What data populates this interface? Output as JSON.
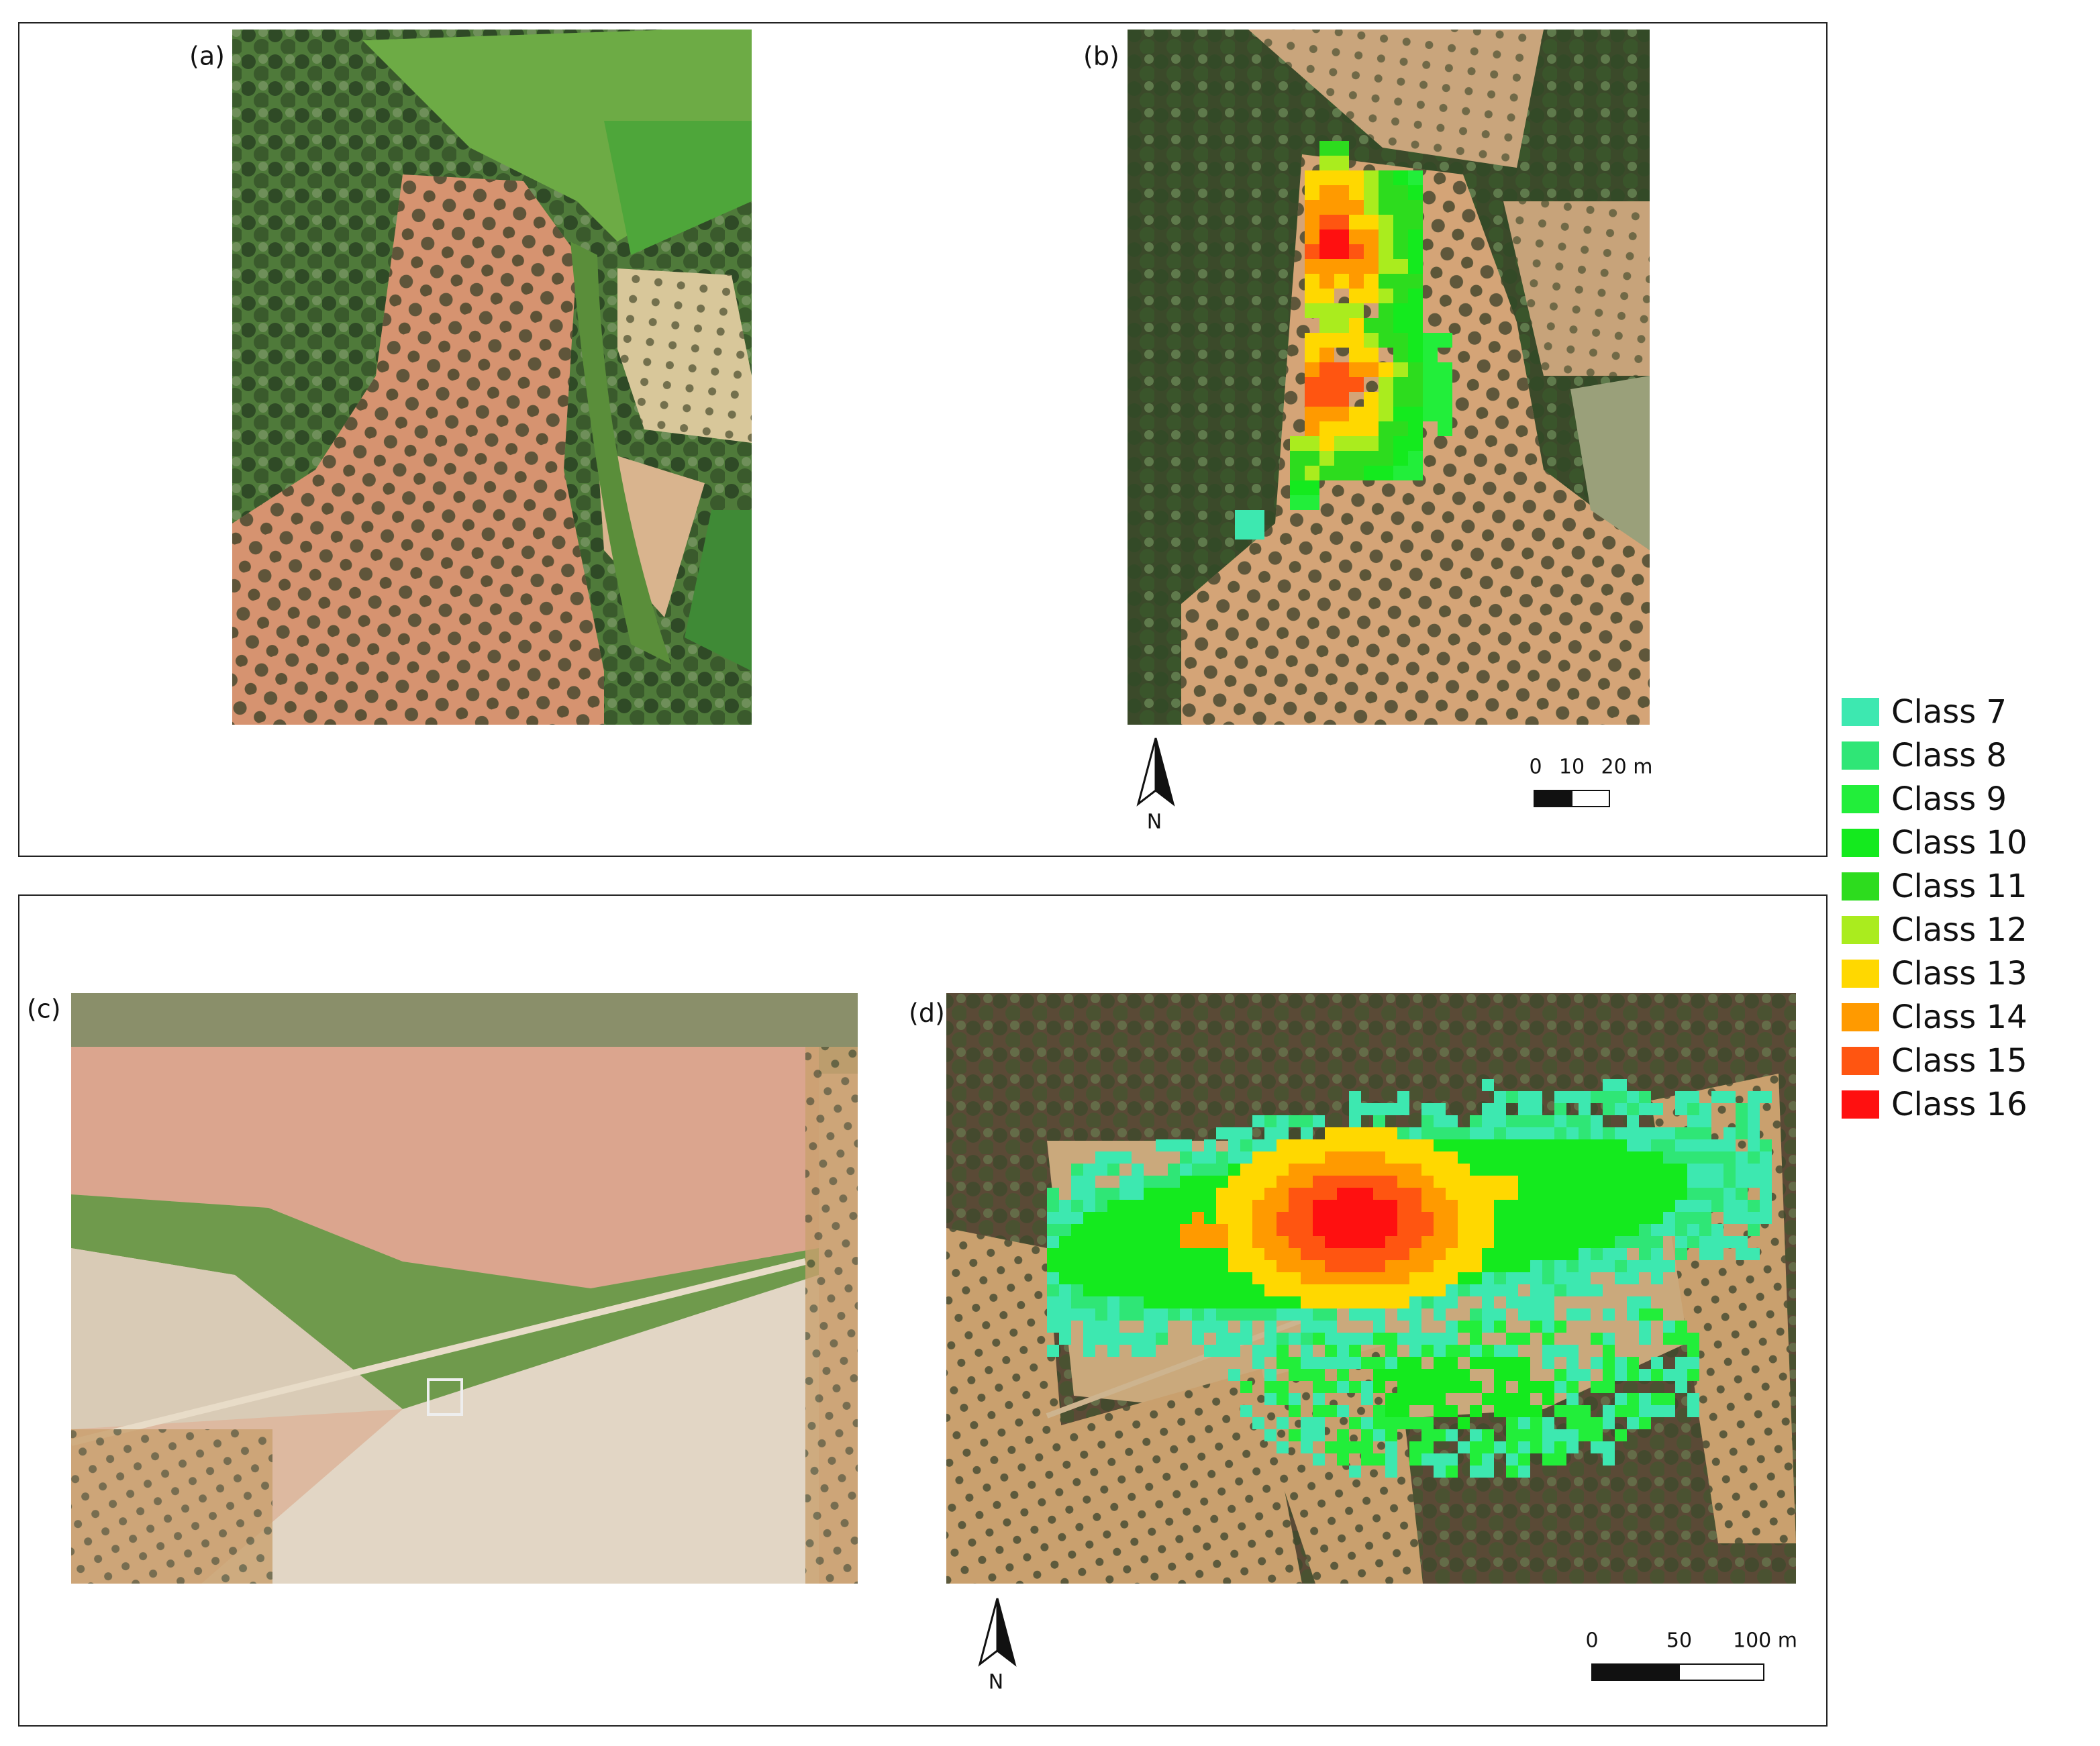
{
  "panels": [
    {
      "label": "(a)"
    },
    {
      "label": "(b)",
      "north": "N",
      "scale": [
        "0",
        "10",
        "20 m"
      ]
    },
    {
      "label": "(c)"
    },
    {
      "label": "(d)",
      "north": "N",
      "scale": [
        "0",
        "50",
        "100 m"
      ]
    }
  ],
  "legend": [
    {
      "label": "Class 7",
      "color": "#3de8b0"
    },
    {
      "label": "Class 8",
      "color": "#2fe676"
    },
    {
      "label": "Class 9",
      "color": "#22ee3a"
    },
    {
      "label": "Class 10",
      "color": "#14ea1e"
    },
    {
      "label": "Class 11",
      "color": "#2ddc1e"
    },
    {
      "label": "Class 12",
      "color": "#aaec1e"
    },
    {
      "label": "Class 13",
      "color": "#ffd800"
    },
    {
      "label": "Class 14",
      "color": "#ff9a00"
    },
    {
      "label": "Class 15",
      "color": "#ff5511"
    },
    {
      "label": "Class 16",
      "color": "#ff1010"
    }
  ]
}
